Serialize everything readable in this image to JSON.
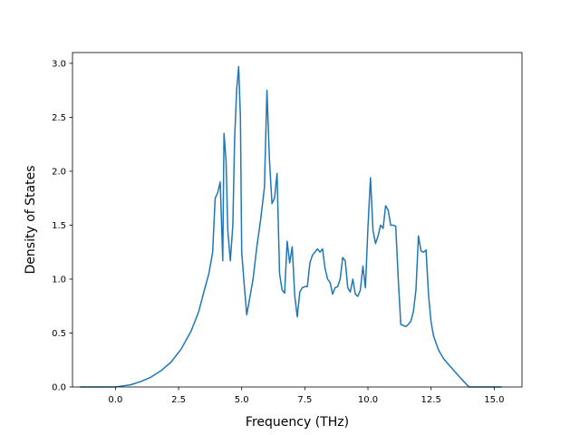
{
  "chart_data": {
    "type": "line",
    "title": "",
    "xlabel": "Frequency (THz)",
    "ylabel": "Density of States",
    "xlim": [
      -1.7,
      16.1
    ],
    "ylim": [
      0,
      3.1
    ],
    "xticks": [
      0.0,
      2.5,
      5.0,
      7.5,
      10.0,
      12.5,
      15.0
    ],
    "xtick_labels": [
      "0.0",
      "2.5",
      "5.0",
      "7.5",
      "10.0",
      "12.5",
      "15.0"
    ],
    "yticks": [
      0.0,
      0.5,
      1.0,
      1.5,
      2.0,
      2.5,
      3.0
    ],
    "ytick_labels": [
      "0.0",
      "0.5",
      "1.0",
      "1.5",
      "2.0",
      "2.5",
      "3.0"
    ],
    "grid": false,
    "legend": "none",
    "line_color": "#1f77b4",
    "series": [
      {
        "x": [
          -1.4,
          -0.8,
          -0.3,
          0.0,
          0.3,
          0.6,
          1.0,
          1.4,
          1.8,
          2.2,
          2.6,
          3.0,
          3.3,
          3.5,
          3.7,
          3.85,
          3.95,
          4.05,
          4.15,
          4.25,
          4.3,
          4.38,
          4.45,
          4.55,
          4.65,
          4.72,
          4.8,
          4.88,
          4.95,
          5.0,
          5.1,
          5.2,
          5.3,
          5.45,
          5.6,
          5.75,
          5.9,
          6.0,
          6.1,
          6.2,
          6.3,
          6.4,
          6.5,
          6.6,
          6.7,
          6.8,
          6.9,
          7.0,
          7.1,
          7.2,
          7.3,
          7.4,
          7.5,
          7.6,
          7.7,
          7.8,
          7.9,
          8.0,
          8.1,
          8.2,
          8.3,
          8.4,
          8.5,
          8.6,
          8.7,
          8.8,
          8.9,
          9.0,
          9.1,
          9.2,
          9.3,
          9.4,
          9.5,
          9.6,
          9.7,
          9.8,
          9.9,
          10.0,
          10.1,
          10.2,
          10.3,
          10.4,
          10.5,
          10.6,
          10.7,
          10.8,
          10.9,
          11.0,
          11.1,
          11.2,
          11.3,
          11.4,
          11.5,
          11.6,
          11.7,
          11.8,
          11.9,
          12.0,
          12.1,
          12.2,
          12.3,
          12.4,
          12.5,
          12.6,
          12.8,
          13.0,
          13.3,
          13.6,
          13.8,
          14.0,
          14.1,
          14.4,
          15.3
        ],
        "values": [
          0.0,
          0.0,
          0.0,
          0.0,
          0.01,
          0.02,
          0.05,
          0.09,
          0.15,
          0.23,
          0.35,
          0.52,
          0.7,
          0.88,
          1.05,
          1.25,
          1.75,
          1.8,
          1.9,
          1.17,
          2.35,
          2.1,
          1.45,
          1.17,
          1.5,
          2.3,
          2.75,
          2.97,
          2.5,
          1.25,
          0.95,
          0.67,
          0.8,
          1.0,
          1.3,
          1.55,
          1.85,
          2.75,
          2.1,
          1.7,
          1.75,
          1.98,
          1.05,
          0.9,
          0.87,
          1.35,
          1.15,
          1.3,
          0.85,
          0.65,
          0.88,
          0.92,
          0.93,
          0.93,
          1.15,
          1.22,
          1.25,
          1.28,
          1.25,
          1.28,
          1.1,
          1.0,
          0.97,
          0.86,
          0.92,
          0.93,
          1.0,
          1.2,
          1.17,
          0.92,
          0.88,
          1.0,
          0.86,
          0.84,
          0.9,
          1.12,
          0.92,
          1.48,
          1.94,
          1.45,
          1.33,
          1.4,
          1.5,
          1.47,
          1.68,
          1.64,
          1.5,
          1.5,
          1.49,
          1.0,
          0.58,
          0.57,
          0.56,
          0.58,
          0.61,
          0.7,
          0.9,
          1.4,
          1.26,
          1.25,
          1.27,
          0.85,
          0.6,
          0.47,
          0.34,
          0.26,
          0.18,
          0.1,
          0.05,
          0.0,
          0.0,
          0.0,
          0.0
        ]
      }
    ]
  }
}
